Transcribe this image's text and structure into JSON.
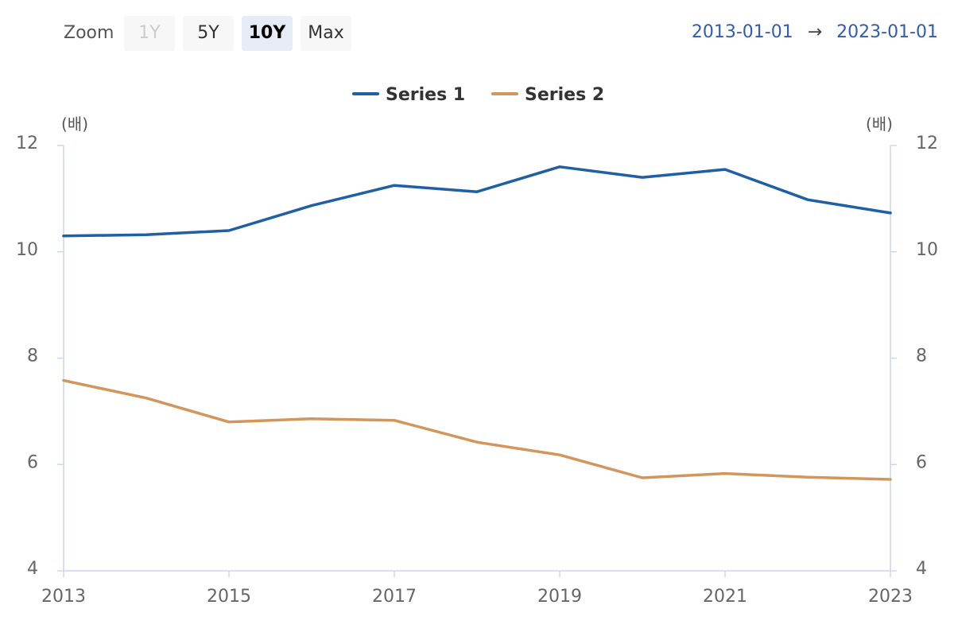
{
  "toolbar": {
    "zoom_label": "Zoom",
    "buttons": [
      {
        "label": "1Y",
        "state": "disabled"
      },
      {
        "label": "5Y",
        "state": "normal"
      },
      {
        "label": "10Y",
        "state": "selected"
      },
      {
        "label": "Max",
        "state": "normal"
      }
    ],
    "range_from": "2013-01-01",
    "range_arrow": "→",
    "range_to": "2023-01-01"
  },
  "colors": {
    "series1": "#1f5fa6",
    "series2": "#d4955a",
    "axis": "#ccd6eb",
    "tick_text": "#666666",
    "range_text": "#335cad"
  },
  "chart_data": {
    "type": "line",
    "legend_position": "top-center",
    "y_unit_left": "(배)",
    "y_unit_right": "(배)",
    "ylim": [
      4,
      12
    ],
    "y_ticks": [
      4,
      6,
      8,
      10,
      12
    ],
    "xlim": [
      2013,
      2023
    ],
    "x_ticks": [
      2013,
      2015,
      2017,
      2019,
      2021,
      2023
    ],
    "x": [
      2013,
      2014,
      2015,
      2016,
      2017,
      2018,
      2019,
      2020,
      2021,
      2022,
      2023
    ],
    "series": [
      {
        "name": "Series 1",
        "color": "#1f5fa6",
        "values": [
          10.3,
          10.32,
          10.4,
          10.87,
          11.25,
          11.13,
          11.6,
          11.4,
          11.55,
          10.98,
          10.73
        ]
      },
      {
        "name": "Series 2",
        "color": "#d4955a",
        "values": [
          7.58,
          7.25,
          6.8,
          6.86,
          6.83,
          6.42,
          6.18,
          5.75,
          5.83,
          5.76,
          5.72
        ]
      }
    ]
  }
}
